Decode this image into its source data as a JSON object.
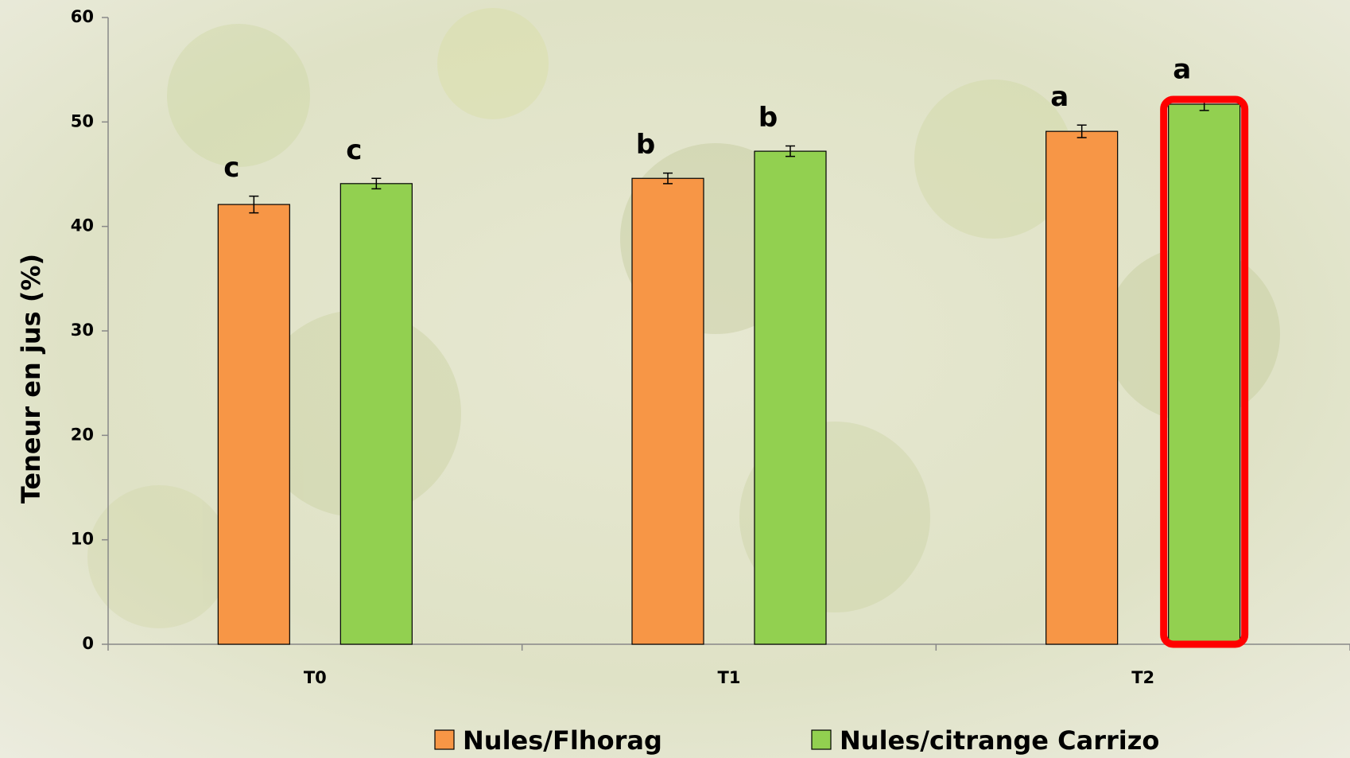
{
  "chart_data": {
    "type": "bar",
    "y_label": "Teneur en jus (%)",
    "categories": [
      "T0",
      "T1",
      "T2"
    ],
    "series": [
      {
        "name": "Nules/Flhorag",
        "color": "#f79646",
        "values": [
          42.1,
          44.6,
          49.1
        ],
        "errors": [
          0.8,
          0.5,
          0.6
        ],
        "letters": [
          "c",
          "b",
          "a"
        ]
      },
      {
        "name": "Nules/citrange Carrizo",
        "color": "#92d050",
        "values": [
          44.1,
          47.2,
          51.7
        ],
        "errors": [
          0.5,
          0.5,
          0.6
        ],
        "letters": [
          "c",
          "b",
          "a"
        ]
      }
    ],
    "ylim": [
      0,
      60
    ],
    "yticks": [
      0,
      10,
      20,
      30,
      40,
      50,
      60
    ],
    "highlight": {
      "series": 1,
      "category": 2,
      "color": "#ff0000"
    }
  }
}
